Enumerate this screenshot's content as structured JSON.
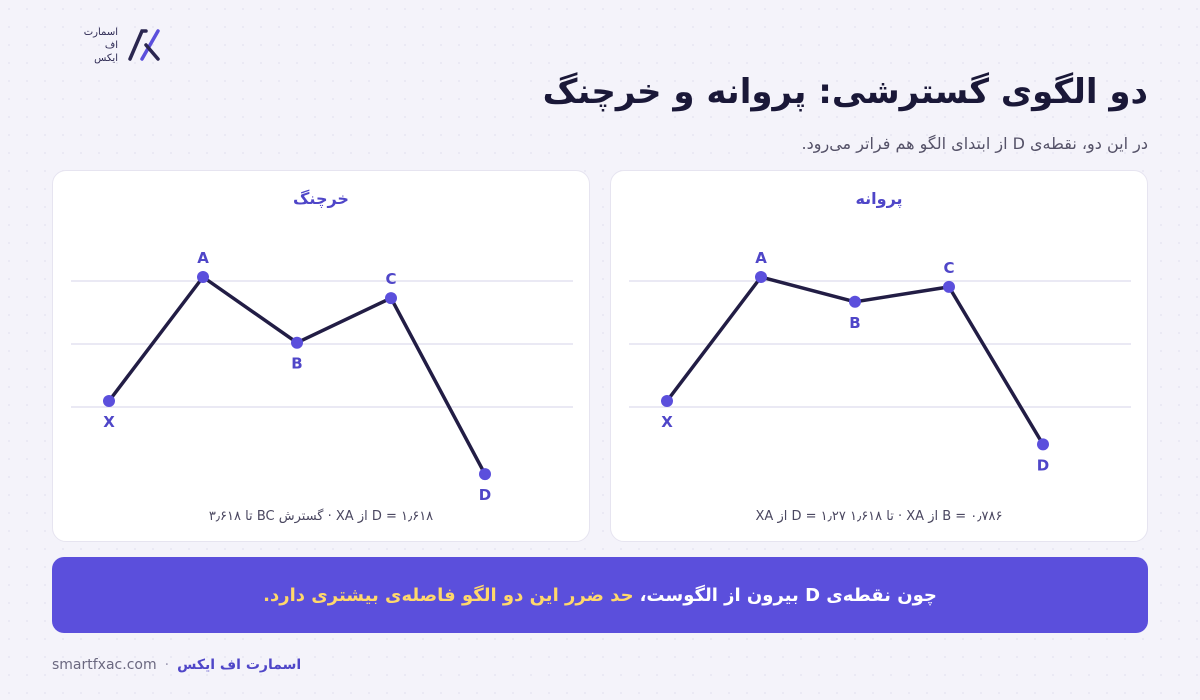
{
  "logo": {
    "lines": [
      "اسمارت",
      "اف",
      "ایکس"
    ]
  },
  "title": "دو الگوی گسترشی: پروانه و خرچنگ",
  "subtitle": "در این دو، نقطه‌ی D از ابتدای الگو هم فراتر می‌رود.",
  "cards": [
    {
      "title": "پروانه",
      "formula": "B = ۰٫۷۸۶ از XA · تا ۱٫۶۱۸ D = ۱٫۲۷ از XA",
      "points": [
        {
          "label": "X",
          "x": 0,
          "y": 0.0
        },
        {
          "label": "A",
          "x": 1,
          "y": 1.0
        },
        {
          "label": "B",
          "x": 2,
          "y": 0.8
        },
        {
          "label": "C",
          "x": 3,
          "y": 0.92
        },
        {
          "label": "D",
          "x": 4,
          "y": -0.35
        }
      ]
    },
    {
      "title": "خرچنگ",
      "formula": "D = ۱٫۶۱۸ از XA · گسترش BC تا ۳٫۶۱۸",
      "points": [
        {
          "label": "X",
          "x": 0,
          "y": 0.0
        },
        {
          "label": "A",
          "x": 1,
          "y": 1.0
        },
        {
          "label": "B",
          "x": 2,
          "y": 0.47
        },
        {
          "label": "C",
          "x": 3,
          "y": 0.83
        },
        {
          "label": "D",
          "x": 4,
          "y": -0.59
        }
      ]
    }
  ],
  "banner": {
    "part1": "چون نقطه‌ی D بیرون از الگوست،",
    "highlight": "حد ضرر این دو الگو فاصله‌ی بیشتری دارد."
  },
  "footer": {
    "brand": "اسمارت اف ایکس",
    "separator": "·",
    "site": "smartfxac.com"
  },
  "colors": {
    "accent": "#5b4fdc",
    "line": "#221d45",
    "point": "#5b4fdc",
    "highlight": "#ffd86b"
  }
}
